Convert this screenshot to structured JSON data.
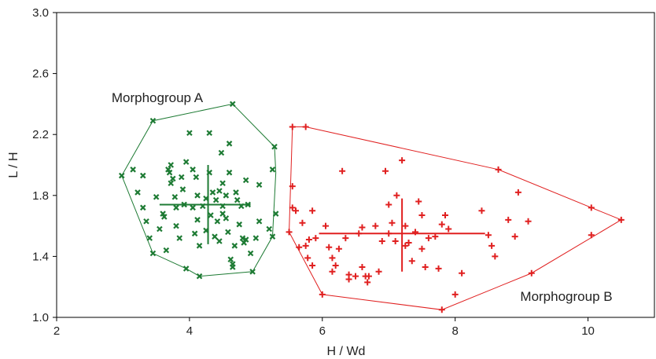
{
  "chart_data": {
    "type": "scatter",
    "xlabel": "H / Wd",
    "ylabel": "L / H",
    "xlim": [
      2,
      11
    ],
    "ylim": [
      1.0,
      3.0
    ],
    "x_ticks": [
      2,
      4,
      6,
      8,
      10
    ],
    "y_ticks": [
      1.0,
      1.4,
      1.8,
      2.2,
      2.6,
      3.0
    ],
    "x_tick_labels": [
      "2",
      "4",
      "6",
      "8",
      "10"
    ],
    "y_tick_labels": [
      "1.0",
      "1.4",
      "1.8",
      "2.2",
      "2.6",
      "3.0"
    ],
    "grid": false,
    "legend": "none",
    "annotations": [
      {
        "text": "Morphogroup A",
        "x": 3.9,
        "y": 2.41
      },
      {
        "text": "Morphogroup B",
        "x": 9.1,
        "y": 1.13
      }
    ],
    "series": [
      {
        "marker": "x",
        "color": "#1e7b34",
        "points": [
          [
            2.98,
            1.93
          ],
          [
            3.15,
            1.97
          ],
          [
            3.22,
            1.82
          ],
          [
            3.3,
            1.93
          ],
          [
            3.3,
            1.72
          ],
          [
            3.35,
            1.63
          ],
          [
            3.4,
            1.52
          ],
          [
            3.45,
            1.42
          ],
          [
            3.45,
            2.29
          ],
          [
            3.5,
            1.79
          ],
          [
            3.55,
            1.58
          ],
          [
            3.6,
            1.68
          ],
          [
            3.62,
            1.66
          ],
          [
            3.65,
            1.44
          ],
          [
            3.68,
            1.97
          ],
          [
            3.7,
            1.95
          ],
          [
            3.72,
            2.0
          ],
          [
            3.72,
            1.88
          ],
          [
            3.75,
            1.91
          ],
          [
            3.78,
            1.79
          ],
          [
            3.8,
            1.72
          ],
          [
            3.8,
            1.6
          ],
          [
            3.85,
            1.52
          ],
          [
            3.88,
            1.92
          ],
          [
            3.9,
            1.84
          ],
          [
            3.92,
            1.74
          ],
          [
            3.95,
            2.02
          ],
          [
            3.95,
            1.32
          ],
          [
            4.0,
            2.21
          ],
          [
            4.05,
            1.97
          ],
          [
            4.05,
            1.72
          ],
          [
            4.08,
            1.55
          ],
          [
            4.1,
            1.92
          ],
          [
            4.12,
            1.8
          ],
          [
            4.12,
            1.64
          ],
          [
            4.15,
            1.47
          ],
          [
            4.15,
            1.27
          ],
          [
            4.2,
            1.73
          ],
          [
            4.25,
            1.78
          ],
          [
            4.25,
            1.57
          ],
          [
            4.3,
            2.21
          ],
          [
            4.3,
            1.95
          ],
          [
            4.32,
            1.67
          ],
          [
            4.35,
            1.82
          ],
          [
            4.38,
            1.53
          ],
          [
            4.4,
            1.77
          ],
          [
            4.42,
            1.63
          ],
          [
            4.45,
            1.83
          ],
          [
            4.45,
            1.5
          ],
          [
            4.48,
            2.08
          ],
          [
            4.5,
            1.73
          ],
          [
            4.5,
            1.88
          ],
          [
            4.5,
            1.68
          ],
          [
            4.55,
            1.8
          ],
          [
            4.55,
            1.65
          ],
          [
            4.58,
            1.56
          ],
          [
            4.6,
            1.95
          ],
          [
            4.6,
            2.14
          ],
          [
            4.62,
            1.38
          ],
          [
            4.65,
            1.35
          ],
          [
            4.65,
            1.33
          ],
          [
            4.65,
            2.4
          ],
          [
            4.68,
            1.47
          ],
          [
            4.7,
            1.82
          ],
          [
            4.72,
            1.77
          ],
          [
            4.75,
            1.61
          ],
          [
            4.78,
            1.73
          ],
          [
            4.8,
            1.52
          ],
          [
            4.82,
            1.49
          ],
          [
            4.85,
            1.9
          ],
          [
            4.85,
            1.51
          ],
          [
            4.88,
            1.74
          ],
          [
            4.92,
            1.42
          ],
          [
            4.95,
            1.3
          ],
          [
            5.0,
            1.52
          ],
          [
            5.05,
            1.63
          ],
          [
            5.2,
            1.58
          ],
          [
            5.25,
            1.53
          ],
          [
            5.25,
            1.97
          ],
          [
            5.28,
            2.12
          ],
          [
            5.3,
            1.68
          ],
          [
            5.05,
            1.87
          ]
        ],
        "hull": [
          [
            2.98,
            1.93
          ],
          [
            3.45,
            2.29
          ],
          [
            4.65,
            2.4
          ],
          [
            5.28,
            2.12
          ],
          [
            5.3,
            1.95
          ],
          [
            5.25,
            1.53
          ],
          [
            4.95,
            1.3
          ],
          [
            4.15,
            1.27
          ],
          [
            3.95,
            1.32
          ],
          [
            3.45,
            1.42
          ],
          [
            2.98,
            1.93
          ]
        ],
        "centroid": [
          4.28,
          1.74
        ],
        "h_range": [
          3.55,
          4.92
        ],
        "v_range": [
          1.48,
          2.0
        ]
      },
      {
        "marker": "+",
        "color": "#e02020",
        "points": [
          [
            5.5,
            1.56
          ],
          [
            5.55,
            1.86
          ],
          [
            5.55,
            1.72
          ],
          [
            5.55,
            2.25
          ],
          [
            5.6,
            1.7
          ],
          [
            5.65,
            1.46
          ],
          [
            5.7,
            1.62
          ],
          [
            5.75,
            1.47
          ],
          [
            5.75,
            2.25
          ],
          [
            5.78,
            1.39
          ],
          [
            5.8,
            1.51
          ],
          [
            5.85,
            1.7
          ],
          [
            5.85,
            1.34
          ],
          [
            5.9,
            1.52
          ],
          [
            6.0,
            1.15
          ],
          [
            6.05,
            1.6
          ],
          [
            6.1,
            1.46
          ],
          [
            6.15,
            1.39
          ],
          [
            6.15,
            1.3
          ],
          [
            6.2,
            1.34
          ],
          [
            6.25,
            1.45
          ],
          [
            6.3,
            1.96
          ],
          [
            6.35,
            1.52
          ],
          [
            6.4,
            1.25
          ],
          [
            6.4,
            1.28
          ],
          [
            6.5,
            1.27
          ],
          [
            6.55,
            1.55
          ],
          [
            6.6,
            1.59
          ],
          [
            6.6,
            1.33
          ],
          [
            6.65,
            1.27
          ],
          [
            6.68,
            1.23
          ],
          [
            6.7,
            1.27
          ],
          [
            6.8,
            1.6
          ],
          [
            6.85,
            1.3
          ],
          [
            6.9,
            1.5
          ],
          [
            6.95,
            1.96
          ],
          [
            7.0,
            1.55
          ],
          [
            7.0,
            1.74
          ],
          [
            7.05,
            1.62
          ],
          [
            7.1,
            1.5
          ],
          [
            7.12,
            1.8
          ],
          [
            7.2,
            2.03
          ],
          [
            7.25,
            1.6
          ],
          [
            7.25,
            1.47
          ],
          [
            7.3,
            1.49
          ],
          [
            7.35,
            1.37
          ],
          [
            7.4,
            1.56
          ],
          [
            7.45,
            1.76
          ],
          [
            7.5,
            1.67
          ],
          [
            7.5,
            1.45
          ],
          [
            7.55,
            1.33
          ],
          [
            7.6,
            1.52
          ],
          [
            7.7,
            1.53
          ],
          [
            7.75,
            1.32
          ],
          [
            7.8,
            1.61
          ],
          [
            7.8,
            1.05
          ],
          [
            7.85,
            1.67
          ],
          [
            7.9,
            1.58
          ],
          [
            8.0,
            1.15
          ],
          [
            8.1,
            1.29
          ],
          [
            8.4,
            1.7
          ],
          [
            8.5,
            1.54
          ],
          [
            8.55,
            1.47
          ],
          [
            8.6,
            1.4
          ],
          [
            8.65,
            1.97
          ],
          [
            8.8,
            1.64
          ],
          [
            8.9,
            1.53
          ],
          [
            8.95,
            1.82
          ],
          [
            9.1,
            1.63
          ],
          [
            9.15,
            1.29
          ],
          [
            10.05,
            1.72
          ],
          [
            10.05,
            1.54
          ],
          [
            10.5,
            1.64
          ],
          [
            7.3,
            1.49
          ]
        ],
        "hull": [
          [
            5.55,
            2.25
          ],
          [
            5.75,
            2.25
          ],
          [
            8.65,
            1.97
          ],
          [
            10.05,
            1.72
          ],
          [
            10.5,
            1.64
          ],
          [
            9.15,
            1.29
          ],
          [
            7.8,
            1.05
          ],
          [
            6.0,
            1.15
          ],
          [
            5.5,
            1.56
          ],
          [
            5.55,
            2.25
          ]
        ],
        "centroid": [
          7.2,
          1.55
        ],
        "h_range": [
          5.95,
          8.45
        ],
        "v_range": [
          1.3,
          1.78
        ]
      }
    ]
  }
}
